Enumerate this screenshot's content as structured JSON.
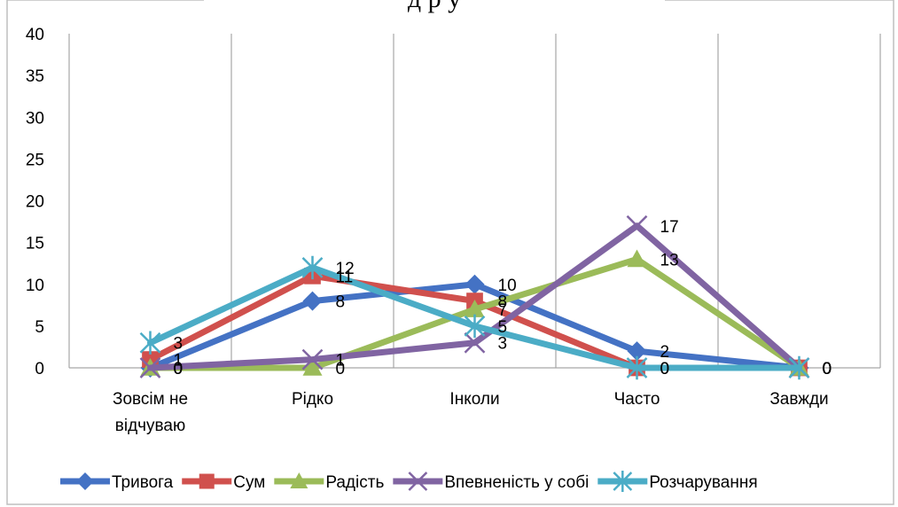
{
  "title_visible": "д р у",
  "chart_data": {
    "type": "line",
    "categories": [
      "Зовсім не відчуваю",
      "Рідко",
      "Інколи",
      "Часто",
      "Завжди"
    ],
    "category_lines": [
      [
        "Зовсім не",
        "відчуваю"
      ],
      [
        "Рідко"
      ],
      [
        "Інколи"
      ],
      [
        "Часто"
      ],
      [
        "Завжди"
      ]
    ],
    "ylim": [
      0,
      40
    ],
    "yticks": [
      "0",
      "5",
      "10",
      "15",
      "20",
      "25",
      "30",
      "35",
      "40"
    ],
    "xlabel": "",
    "ylabel": "",
    "grid": "vertical",
    "legend_position": "bottom",
    "series": [
      {
        "name": "Тривога",
        "values": [
          0,
          8,
          10,
          2,
          0
        ],
        "color": "#4472C4",
        "marker": "diamond"
      },
      {
        "name": "Сум",
        "values": [
          1,
          11,
          8,
          0,
          0
        ],
        "color": "#D0504D",
        "marker": "square"
      },
      {
        "name": "Радість",
        "values": [
          0,
          0,
          7,
          13,
          0
        ],
        "color": "#9BBB59",
        "marker": "triangle"
      },
      {
        "name": "Впевненість у собі",
        "values": [
          0,
          1,
          3,
          17,
          0
        ],
        "color": "#8064A2",
        "marker": "x"
      },
      {
        "name": "Розчарування",
        "values": [
          3,
          12,
          5,
          0,
          0
        ],
        "color": "#4BACC6",
        "marker": "star"
      }
    ]
  }
}
